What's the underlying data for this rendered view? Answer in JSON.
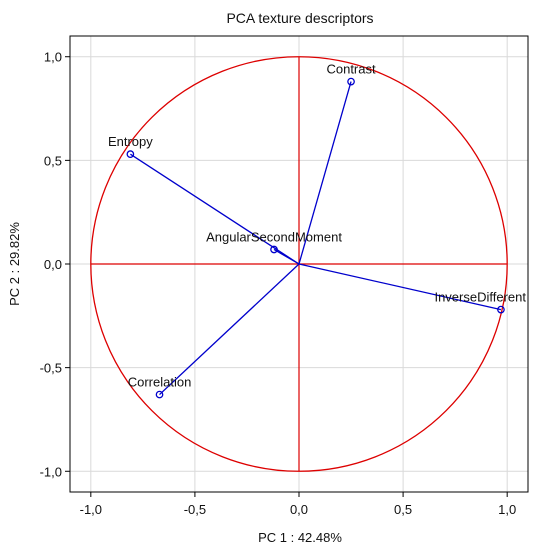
{
  "chart_data": {
    "type": "scatter",
    "title": "PCA texture descriptors",
    "xlabel": "PC 1 : 42.48%",
    "ylabel": "PC 2 : 29.82%",
    "xlim": [
      -1.1,
      1.1
    ],
    "ylim": [
      -1.1,
      1.1
    ],
    "xticks": [
      -1.0,
      -0.5,
      0.0,
      0.5,
      1.0
    ],
    "yticks": [
      -1.0,
      -0.5,
      0.0,
      0.5,
      1.0
    ],
    "xtick_labels": [
      "-1,0",
      "-0,5",
      "0,0",
      "0,5",
      "1,0"
    ],
    "ytick_labels": [
      "-1,0",
      "-0,5",
      "0,0",
      "0,5",
      "1,0"
    ],
    "grid": true,
    "unit_circle": true,
    "points": [
      {
        "label": "Contrast",
        "x": 0.25,
        "y": 0.88
      },
      {
        "label": "Entropy",
        "x": -0.81,
        "y": 0.53
      },
      {
        "label": "AngularSecondMoment",
        "x": -0.12,
        "y": 0.07
      },
      {
        "label": "InverseDifferent",
        "x": 0.97,
        "y": -0.22
      },
      {
        "label": "Correlation",
        "x": -0.67,
        "y": -0.63
      }
    ],
    "colors": {
      "vectors": "#0000cc",
      "circle": "#dd0000",
      "axes_cross": "#dd0000",
      "grid": "#d9d9d9",
      "frame": "#000000"
    }
  }
}
